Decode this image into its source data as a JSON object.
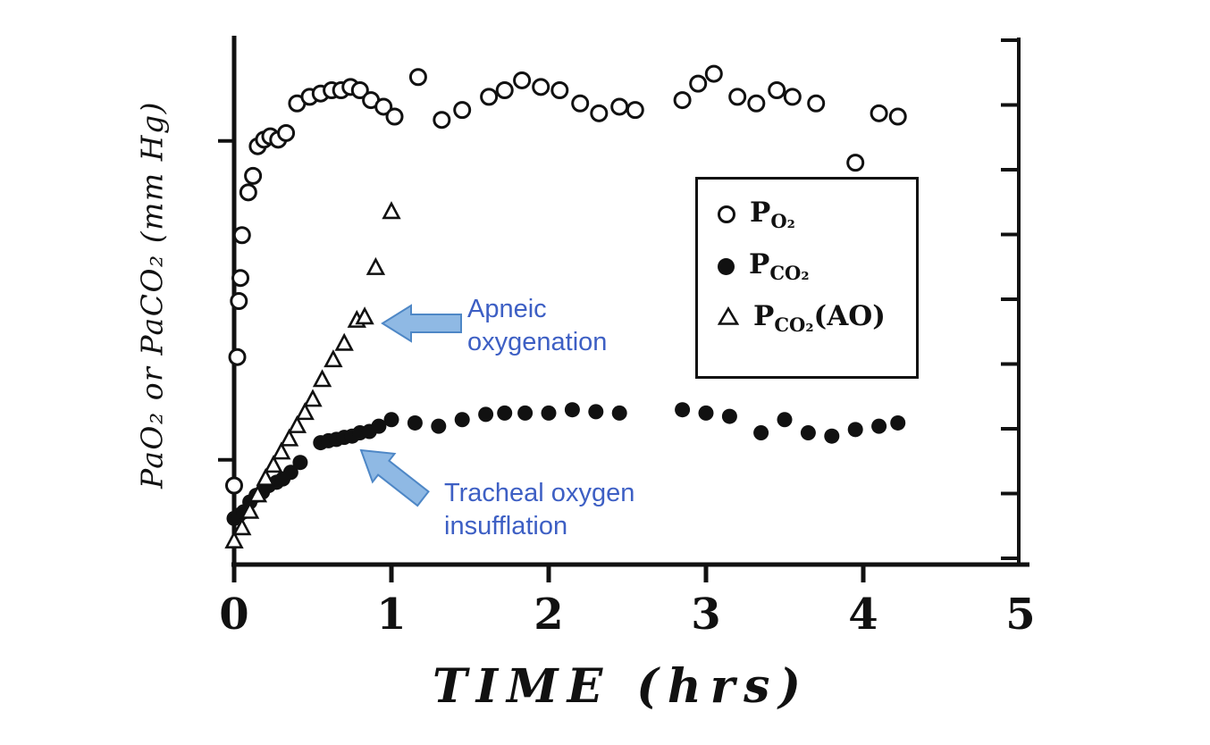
{
  "chart": {
    "y_axis_label": "PaO₂ or PaCO₂ (mm Hg)",
    "x_axis_label": "TIME (hrs)",
    "x_ticks": [
      "0",
      "1",
      "2",
      "3",
      "4",
      "5"
    ],
    "legend": {
      "items": [
        {
          "marker": "open-circle",
          "main": "P",
          "sub": "O₂",
          "suffix": ""
        },
        {
          "marker": "filled-circle",
          "main": "P",
          "sub": "CO₂",
          "suffix": ""
        },
        {
          "marker": "open-triangle",
          "main": "P",
          "sub": "CO₂",
          "suffix": "(AO)"
        }
      ]
    },
    "annotations": [
      {
        "line1": "Apneic",
        "line2": "oxygenation",
        "color": "#3D5FC4",
        "arrow_fill": "#8FB9E4",
        "arrow_stroke": "#4E87C6",
        "arrow_direction": "left",
        "points_to": "open-triangle series near t=0.8 hrs"
      },
      {
        "line1": "Tracheal oxygen",
        "line2": "insufflation",
        "color": "#3D5FC4",
        "arrow_fill": "#8FB9E4",
        "arrow_stroke": "#4E87C6",
        "arrow_direction": "up-left",
        "points_to": "filled-circle series near t=0.8 hrs"
      }
    ]
  },
  "chart_data": {
    "type": "scatter",
    "title": "",
    "xlabel": "TIME (hrs)",
    "ylabel": "PaO₂ or PaCO₂ (mm Hg)",
    "xlim": [
      0,
      5
    ],
    "ylim": [
      0,
      8
    ],
    "grid": false,
    "legend_position": "upper right (boxed)",
    "y_note": "y-axis tick marks are unlabeled in the figure; y values given in axis divisions (8 equal divisions full scale)",
    "series": [
      {
        "name": "PO₂",
        "marker": "open-circle",
        "points": [
          [
            0.0,
            1.2
          ],
          [
            0.02,
            3.15
          ],
          [
            0.03,
            4.0
          ],
          [
            0.04,
            4.35
          ],
          [
            0.05,
            5.0
          ],
          [
            0.09,
            5.65
          ],
          [
            0.12,
            5.9
          ],
          [
            0.15,
            6.35
          ],
          [
            0.19,
            6.45
          ],
          [
            0.23,
            6.5
          ],
          [
            0.28,
            6.45
          ],
          [
            0.33,
            6.55
          ],
          [
            0.4,
            7.0
          ],
          [
            0.48,
            7.1
          ],
          [
            0.55,
            7.15
          ],
          [
            0.62,
            7.2
          ],
          [
            0.68,
            7.2
          ],
          [
            0.74,
            7.25
          ],
          [
            0.8,
            7.2
          ],
          [
            0.87,
            7.05
          ],
          [
            0.95,
            6.95
          ],
          [
            1.02,
            6.8
          ],
          [
            1.17,
            7.4
          ],
          [
            1.32,
            6.75
          ],
          [
            1.45,
            6.9
          ],
          [
            1.62,
            7.1
          ],
          [
            1.72,
            7.2
          ],
          [
            1.83,
            7.35
          ],
          [
            1.95,
            7.25
          ],
          [
            2.07,
            7.2
          ],
          [
            2.2,
            7.0
          ],
          [
            2.32,
            6.85
          ],
          [
            2.45,
            6.95
          ],
          [
            2.55,
            6.9
          ],
          [
            2.85,
            7.05
          ],
          [
            2.95,
            7.3
          ],
          [
            3.05,
            7.45
          ],
          [
            3.2,
            7.1
          ],
          [
            3.32,
            7.0
          ],
          [
            3.45,
            7.2
          ],
          [
            3.55,
            7.1
          ],
          [
            3.7,
            7.0
          ],
          [
            3.95,
            6.1
          ],
          [
            4.1,
            6.85
          ],
          [
            4.22,
            6.8
          ]
        ]
      },
      {
        "name": "PCO₂",
        "marker": "filled-circle",
        "points": [
          [
            0.0,
            0.7
          ],
          [
            0.03,
            0.75
          ],
          [
            0.06,
            0.8
          ],
          [
            0.1,
            0.95
          ],
          [
            0.14,
            1.05
          ],
          [
            0.18,
            1.1
          ],
          [
            0.22,
            1.2
          ],
          [
            0.27,
            1.25
          ],
          [
            0.31,
            1.3
          ],
          [
            0.36,
            1.4
          ],
          [
            0.42,
            1.55
          ],
          [
            0.55,
            1.85
          ],
          [
            0.6,
            1.88
          ],
          [
            0.65,
            1.9
          ],
          [
            0.7,
            1.93
          ],
          [
            0.75,
            1.95
          ],
          [
            0.8,
            2.0
          ],
          [
            0.86,
            2.02
          ],
          [
            0.92,
            2.1
          ],
          [
            1.0,
            2.2
          ],
          [
            1.15,
            2.15
          ],
          [
            1.3,
            2.1
          ],
          [
            1.45,
            2.2
          ],
          [
            1.6,
            2.28
          ],
          [
            1.72,
            2.3
          ],
          [
            1.85,
            2.3
          ],
          [
            2.0,
            2.3
          ],
          [
            2.15,
            2.35
          ],
          [
            2.3,
            2.32
          ],
          [
            2.45,
            2.3
          ],
          [
            2.85,
            2.35
          ],
          [
            3.0,
            2.3
          ],
          [
            3.15,
            2.25
          ],
          [
            3.35,
            2.0
          ],
          [
            3.5,
            2.2
          ],
          [
            3.65,
            2.0
          ],
          [
            3.8,
            1.95
          ],
          [
            3.95,
            2.05
          ],
          [
            4.1,
            2.1
          ],
          [
            4.22,
            2.15
          ]
        ]
      },
      {
        "name": "PCO₂(AO)",
        "marker": "open-triangle",
        "points": [
          [
            0.0,
            0.35
          ],
          [
            0.05,
            0.55
          ],
          [
            0.1,
            0.8
          ],
          [
            0.15,
            1.05
          ],
          [
            0.2,
            1.3
          ],
          [
            0.25,
            1.5
          ],
          [
            0.3,
            1.7
          ],
          [
            0.35,
            1.9
          ],
          [
            0.4,
            2.1
          ],
          [
            0.45,
            2.3
          ],
          [
            0.5,
            2.5
          ],
          [
            0.56,
            2.8
          ],
          [
            0.63,
            3.1
          ],
          [
            0.7,
            3.35
          ],
          [
            0.78,
            3.7
          ],
          [
            0.83,
            3.75
          ],
          [
            0.9,
            4.5
          ],
          [
            1.0,
            5.35
          ]
        ]
      }
    ]
  }
}
